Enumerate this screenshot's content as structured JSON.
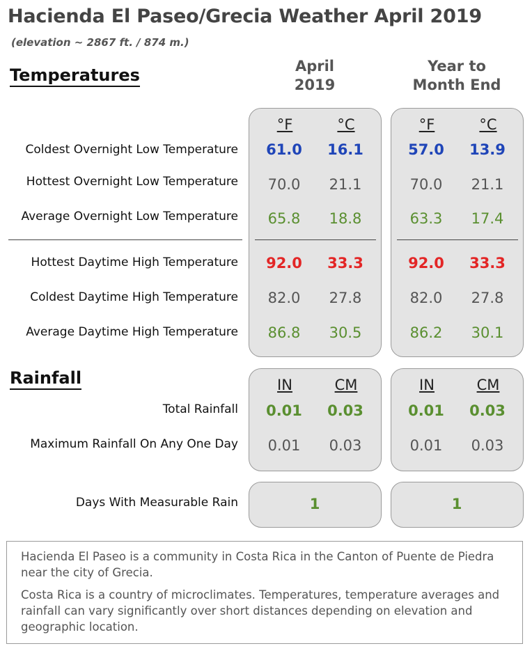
{
  "header": {
    "title": "Hacienda El Paseo/Grecia Weather April 2019",
    "elevation": "(elevation ~ 2867 ft. / 874  m.)"
  },
  "columns": {
    "month": [
      "April",
      "2019"
    ],
    "ytd": [
      "Year to",
      "Month End"
    ]
  },
  "temperatures": {
    "heading": "Temperatures",
    "units": [
      "°F",
      "°C"
    ],
    "rows": [
      {
        "label": "Coldest Overnight Low Temperature",
        "month": [
          "61.0",
          "16.1"
        ],
        "ytd": [
          "57.0",
          "13.9"
        ],
        "style": "blue"
      },
      {
        "label": "Hottest Overnight Low Temperature",
        "month": [
          "70.0",
          "21.1"
        ],
        "ytd": [
          "70.0",
          "21.1"
        ],
        "style": "gray"
      },
      {
        "label": "Average Overnight Low Temperature",
        "month": [
          "65.8",
          "18.8"
        ],
        "ytd": [
          "63.3",
          "17.4"
        ],
        "style": "green"
      },
      {
        "label": "Hottest Daytime High Temperature",
        "month": [
          "92.0",
          "33.3"
        ],
        "ytd": [
          "92.0",
          "33.3"
        ],
        "style": "red"
      },
      {
        "label": "Coldest Daytime High Temperature",
        "month": [
          "82.0",
          "27.8"
        ],
        "ytd": [
          "82.0",
          "27.8"
        ],
        "style": "gray"
      },
      {
        "label": "Average Daytime High Temperature",
        "month": [
          "86.8",
          "30.5"
        ],
        "ytd": [
          "86.2",
          "30.1"
        ],
        "style": "green"
      }
    ]
  },
  "rainfall": {
    "heading": "Rainfall",
    "units": [
      "IN",
      "CM"
    ],
    "rows": [
      {
        "label": "Total Rainfall",
        "month": [
          "0.01",
          "0.03"
        ],
        "ytd": [
          "0.01",
          "0.03"
        ],
        "style": "greenb"
      },
      {
        "label": "Maximum Rainfall On Any One Day",
        "month": [
          "0.01",
          "0.03"
        ],
        "ytd": [
          "0.01",
          "0.03"
        ],
        "style": "gray"
      }
    ],
    "days": {
      "label": "Days With Measurable Rain",
      "month": "1",
      "ytd": "1"
    }
  },
  "about": [
    "Hacienda El Paseo is a community in Costa Rica in the Canton of Puente de Piedra near the city of Grecia.",
    "Costa Rica is a country of microclimates. Temperatures, temperature averages and rainfall can vary significantly over short distances depending on elevation and geographic location."
  ],
  "colors": {
    "cold": "#1f45b8",
    "hot": "#e32626",
    "average": "#5a8f30",
    "neutral": "#555555"
  }
}
